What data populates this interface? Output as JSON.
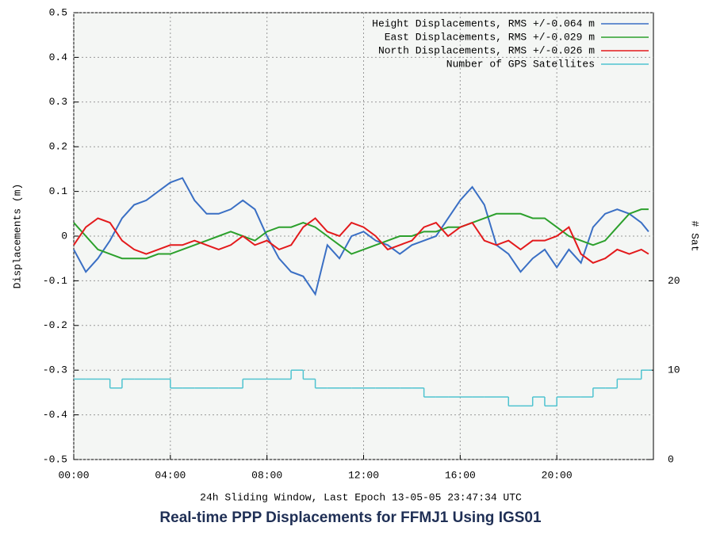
{
  "chart_data": {
    "type": "line",
    "title": "Real-time PPP Displacements for FFMJ1 Using IGS01",
    "xlabel": "24h Sliding Window, Last Epoch 13-05-05 23:47:34 UTC",
    "ylabel": "Displacements (m)",
    "y2label": "# Sat",
    "x": [
      0,
      0.5,
      1,
      1.5,
      2,
      2.5,
      3,
      3.5,
      4,
      4.5,
      5,
      5.5,
      6,
      6.5,
      7,
      7.5,
      8,
      8.5,
      9,
      9.5,
      10,
      10.5,
      11,
      11.5,
      12,
      12.5,
      13,
      13.5,
      14,
      14.5,
      15,
      15.5,
      16,
      16.5,
      17,
      17.5,
      18,
      18.5,
      19,
      19.5,
      20,
      20.5,
      21,
      21.5,
      22,
      22.5,
      23,
      23.5,
      23.8
    ],
    "xlim": [
      0,
      24
    ],
    "xticks": [
      {
        "value": 0,
        "label": "00:00"
      },
      {
        "value": 4,
        "label": "04:00"
      },
      {
        "value": 8,
        "label": "08:00"
      },
      {
        "value": 12,
        "label": "12:00"
      },
      {
        "value": 16,
        "label": "16:00"
      },
      {
        "value": 20,
        "label": "20:00"
      }
    ],
    "ylim": [
      -0.5,
      0.5
    ],
    "yticks": [
      0.5,
      0.4,
      0.3,
      0.2,
      0.1,
      0,
      -0.1,
      -0.2,
      -0.3,
      -0.4,
      -0.5
    ],
    "y2lim": [
      0,
      50
    ],
    "y2ticks": [
      0,
      10,
      20
    ],
    "grid": true,
    "legend": "upper right",
    "series": [
      {
        "name": "Height Displacements, RMS +/-0.064 m",
        "color": "#3a6fc4",
        "values": [
          -0.03,
          -0.08,
          -0.05,
          -0.01,
          0.04,
          0.07,
          0.08,
          0.1,
          0.12,
          0.13,
          0.08,
          0.05,
          0.05,
          0.06,
          0.08,
          0.06,
          0.0,
          -0.05,
          -0.08,
          -0.09,
          -0.13,
          -0.02,
          -0.05,
          0.0,
          0.01,
          -0.01,
          -0.02,
          -0.04,
          -0.02,
          -0.01,
          0.0,
          0.04,
          0.08,
          0.11,
          0.07,
          -0.02,
          -0.04,
          -0.08,
          -0.05,
          -0.03,
          -0.07,
          -0.03,
          -0.06,
          0.02,
          0.05,
          0.06,
          0.05,
          0.03,
          0.01
        ]
      },
      {
        "name": "East Displacements, RMS +/-0.029 m",
        "color": "#2ca02c",
        "values": [
          0.03,
          0.0,
          -0.03,
          -0.04,
          -0.05,
          -0.05,
          -0.05,
          -0.04,
          -0.04,
          -0.03,
          -0.02,
          -0.01,
          0.0,
          0.01,
          0.0,
          -0.01,
          0.01,
          0.02,
          0.02,
          0.03,
          0.02,
          0.0,
          -0.02,
          -0.04,
          -0.03,
          -0.02,
          -0.01,
          0.0,
          0.0,
          0.01,
          0.01,
          0.02,
          0.02,
          0.03,
          0.04,
          0.05,
          0.05,
          0.05,
          0.04,
          0.04,
          0.02,
          0.0,
          -0.01,
          -0.02,
          -0.01,
          0.02,
          0.05,
          0.06,
          0.06
        ]
      },
      {
        "name": "North Displacements, RMS +/-0.026 m",
        "color": "#e31a1c",
        "values": [
          -0.02,
          0.02,
          0.04,
          0.03,
          -0.01,
          -0.03,
          -0.04,
          -0.03,
          -0.02,
          -0.02,
          -0.01,
          -0.02,
          -0.03,
          -0.02,
          0.0,
          -0.02,
          -0.01,
          -0.03,
          -0.02,
          0.02,
          0.04,
          0.01,
          0.0,
          0.03,
          0.02,
          0.0,
          -0.03,
          -0.02,
          -0.01,
          0.02,
          0.03,
          0.0,
          0.02,
          0.03,
          -0.01,
          -0.02,
          -0.01,
          -0.03,
          -0.01,
          -0.01,
          0.0,
          0.02,
          -0.04,
          -0.06,
          -0.05,
          -0.03,
          -0.04,
          -0.03,
          -0.04
        ]
      },
      {
        "name": "Number of GPS Satellites",
        "color": "#4fc3d0",
        "axis": "y2",
        "step": true,
        "values": [
          9,
          9,
          9,
          8,
          9,
          9,
          9,
          9,
          8,
          8,
          8,
          8,
          8,
          8,
          9,
          9,
          9,
          9,
          10,
          9,
          8,
          8,
          8,
          8,
          8,
          8,
          8,
          8,
          8,
          7,
          7,
          7,
          7,
          7,
          7,
          7,
          6,
          6,
          7,
          6,
          7,
          7,
          7,
          8,
          8,
          9,
          9,
          10,
          10
        ]
      }
    ]
  }
}
